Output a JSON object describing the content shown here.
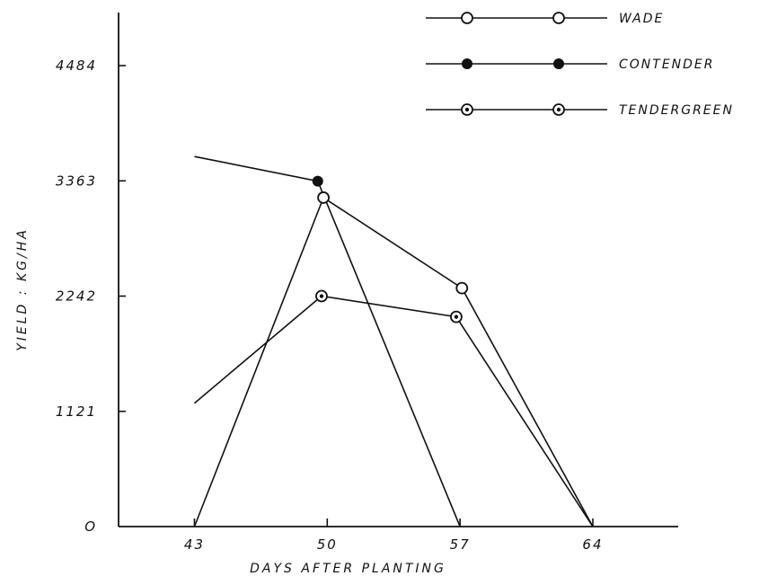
{
  "chart_data": {
    "type": "line",
    "title": "",
    "xlabel": "DAYS AFTER PLANTING",
    "ylabel": "YIELD : KG/HA",
    "x_ticks": [
      43,
      50,
      57,
      64
    ],
    "y_ticks": [
      0,
      1121,
      2242,
      3363,
      4484
    ],
    "y_tick_labels": [
      "O",
      "1121",
      "2242",
      "3363",
      "4484"
    ],
    "xlim": [
      39,
      68.5
    ],
    "ylim": [
      0,
      5000
    ],
    "grid": false,
    "legend_position": "top-right",
    "series": [
      {
        "name": "WADE",
        "marker": "open-circle",
        "points": [
          [
            43,
            0
          ],
          [
            49.8,
            3200
          ],
          [
            57.1,
            2320
          ],
          [
            64,
            0
          ]
        ]
      },
      {
        "name": "CONTENDER",
        "marker": "filled-circle",
        "points": [
          [
            43,
            3600
          ],
          [
            49.5,
            3360
          ],
          [
            57,
            0
          ]
        ],
        "marked_x": [
          49.5
        ]
      },
      {
        "name": "TENDERGREEN",
        "marker": "dotted-circle",
        "points": [
          [
            43,
            1200
          ],
          [
            49.7,
            2242
          ],
          [
            56.8,
            2040
          ],
          [
            64,
            0
          ]
        ],
        "marked_x": [
          49.7,
          56.8
        ]
      }
    ]
  }
}
